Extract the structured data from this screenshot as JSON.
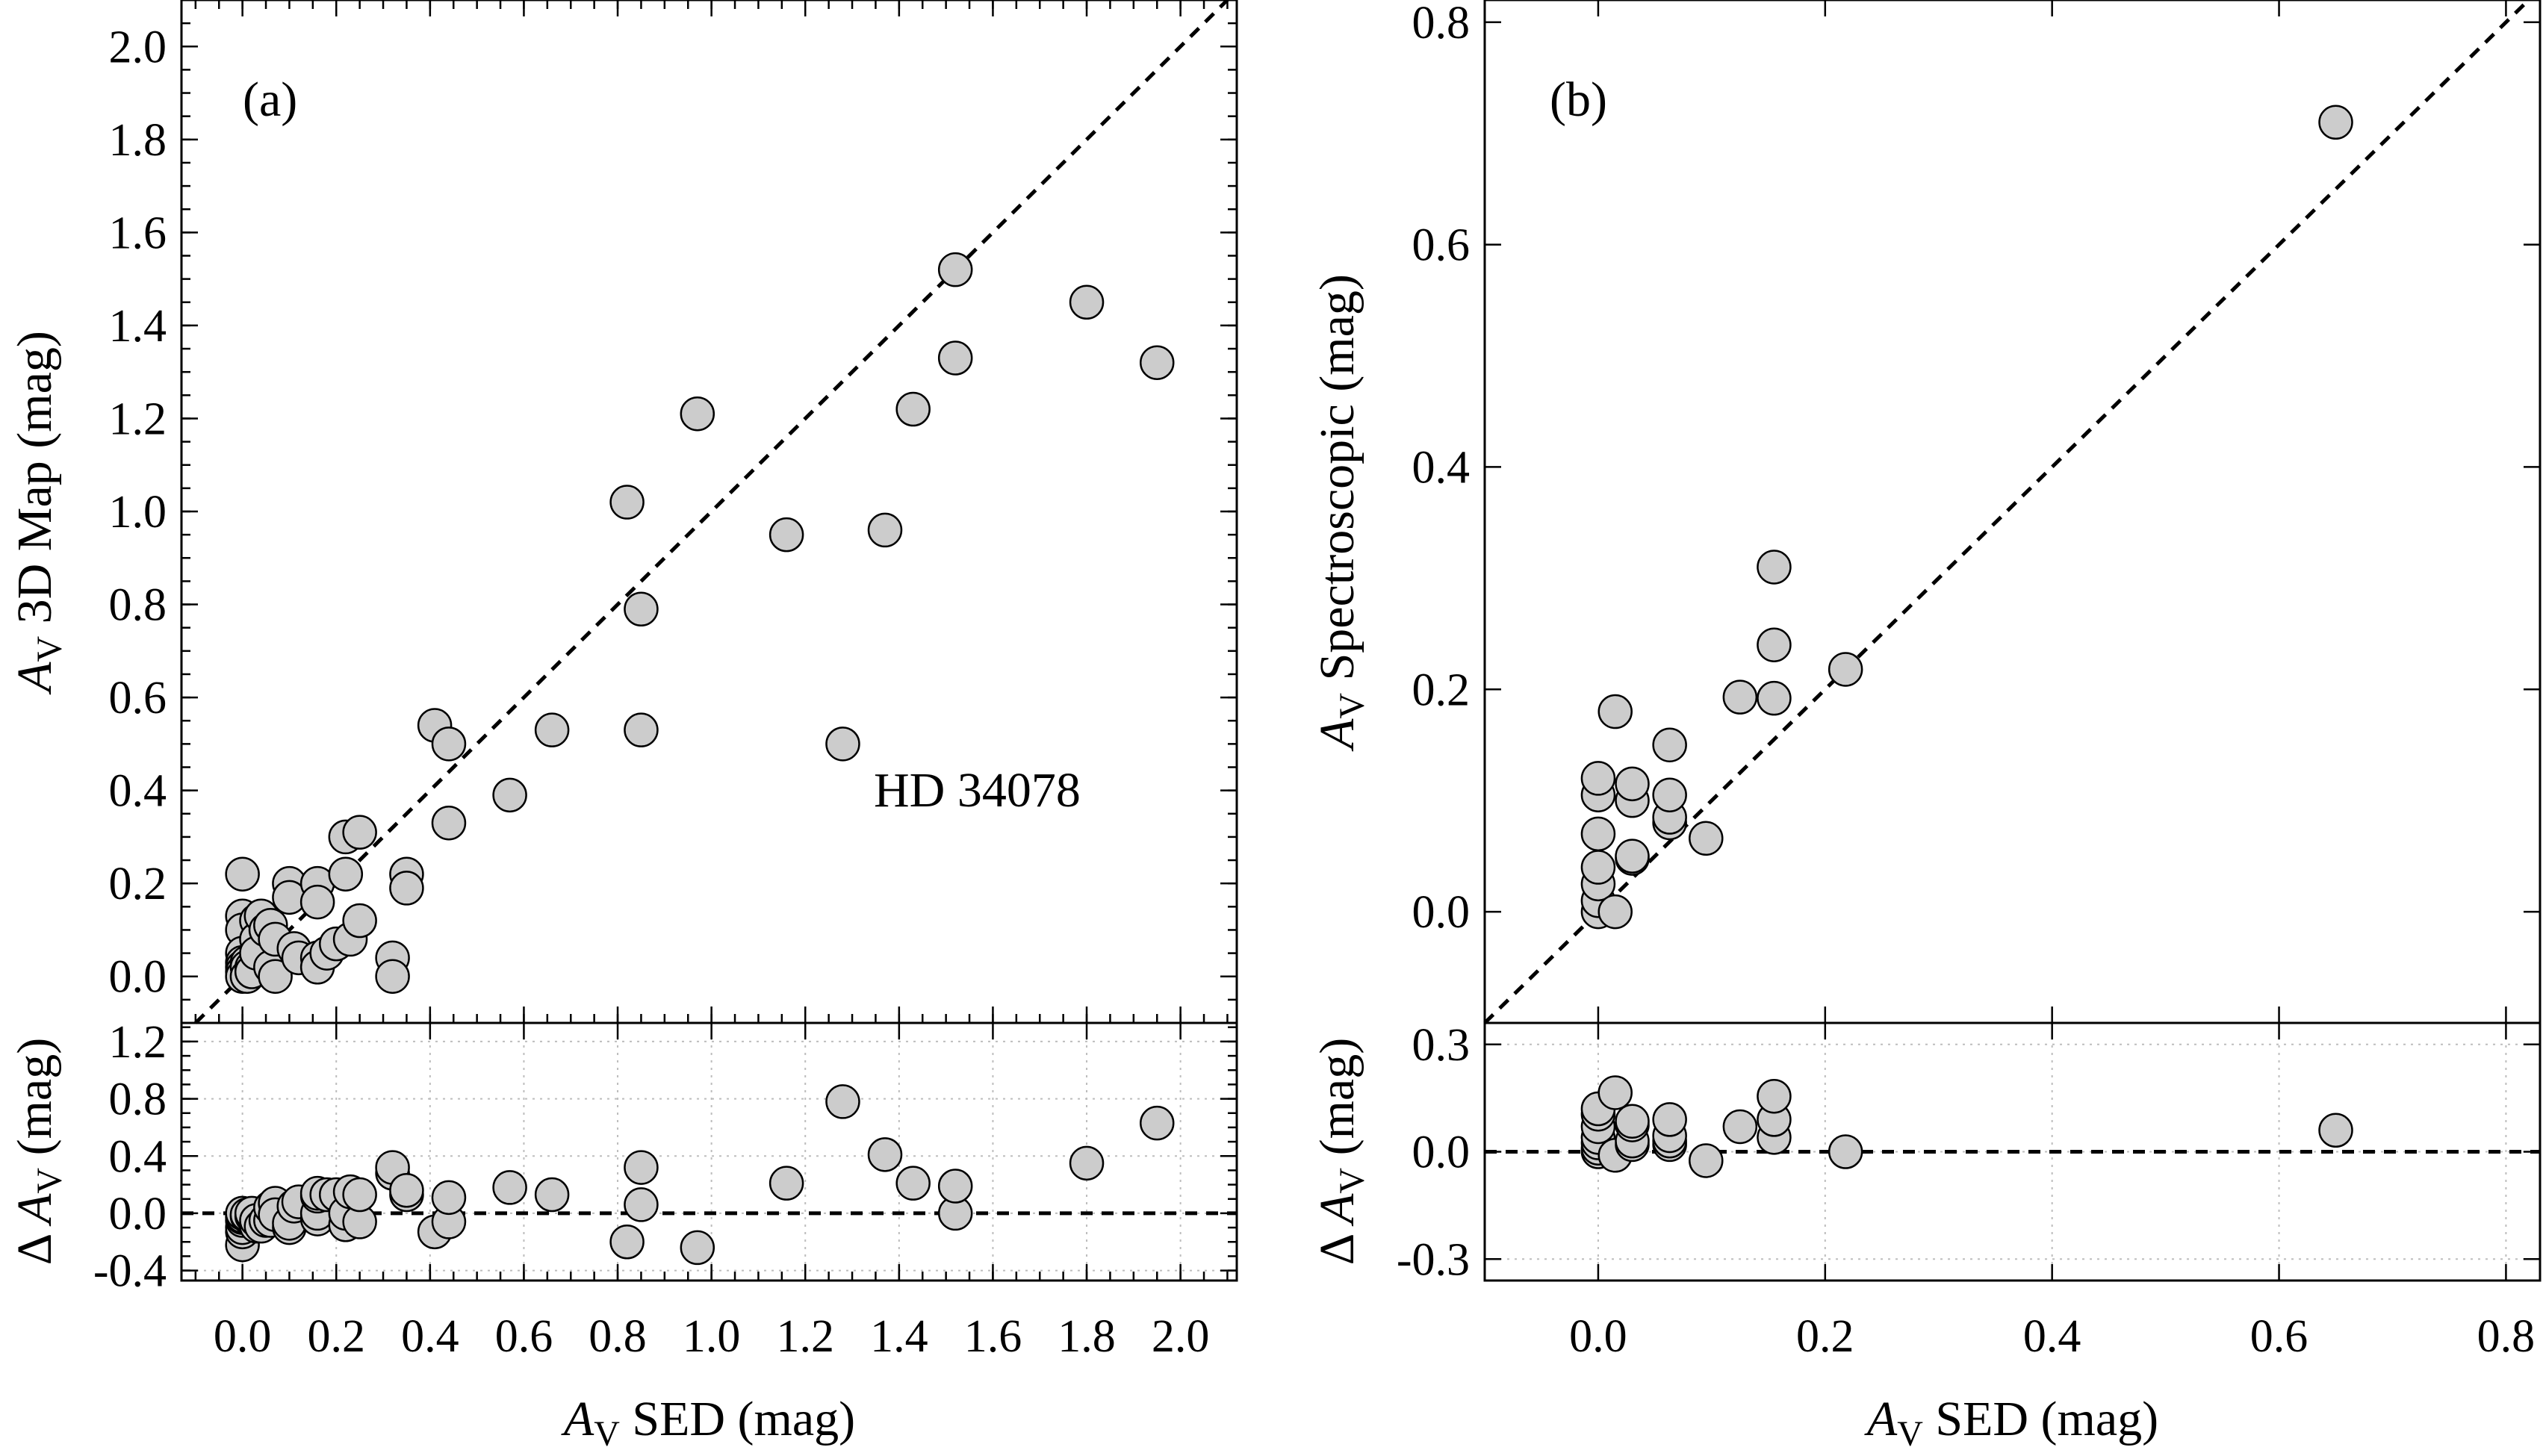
{
  "chart_data": [
    {
      "id": "a",
      "type": "scatter",
      "panel_label": "(a)",
      "annotation": "HD 34078",
      "xlabel": {
        "italic": "A",
        "sub": "V",
        "rest": " SED (mag)"
      },
      "main": {
        "ylabel": {
          "italic": "A",
          "sub": "V",
          "rest": " 3D Map (mag)"
        },
        "xlim": [
          -0.13,
          2.12
        ],
        "ylim": [
          -0.1,
          2.1
        ],
        "yticks": [
          "0.0",
          "0.2",
          "0.4",
          "0.6",
          "0.8",
          "1.0",
          "1.2",
          "1.4",
          "1.6",
          "1.8",
          "2.0"
        ],
        "reference": "y = x",
        "points": [
          [
            0.0,
            0.22
          ],
          [
            0.0,
            0.13
          ],
          [
            0.0,
            0.1
          ],
          [
            0.0,
            0.05
          ],
          [
            0.0,
            0.03
          ],
          [
            0.0,
            0.02
          ],
          [
            0.0,
            0.01
          ],
          [
            0.0,
            0.0
          ],
          [
            0.01,
            0.03
          ],
          [
            0.01,
            0.02
          ],
          [
            0.01,
            0.0
          ],
          [
            0.02,
            0.02
          ],
          [
            0.02,
            0.01
          ],
          [
            0.03,
            0.12
          ],
          [
            0.03,
            0.08
          ],
          [
            0.03,
            0.05
          ],
          [
            0.04,
            0.13
          ],
          [
            0.05,
            0.1
          ],
          [
            0.06,
            0.11
          ],
          [
            0.06,
            0.02
          ],
          [
            0.07,
            0.0
          ],
          [
            0.07,
            0.08
          ],
          [
            0.1,
            0.2
          ],
          [
            0.1,
            0.17
          ],
          [
            0.11,
            0.06
          ],
          [
            0.12,
            0.04
          ],
          [
            0.16,
            0.2
          ],
          [
            0.16,
            0.16
          ],
          [
            0.16,
            0.04
          ],
          [
            0.16,
            0.02
          ],
          [
            0.18,
            0.05
          ],
          [
            0.2,
            0.07
          ],
          [
            0.22,
            0.3
          ],
          [
            0.22,
            0.22
          ],
          [
            0.23,
            0.08
          ],
          [
            0.25,
            0.31
          ],
          [
            0.25,
            0.12
          ],
          [
            0.32,
            0.04
          ],
          [
            0.32,
            0.0
          ],
          [
            0.35,
            0.22
          ],
          [
            0.35,
            0.19
          ],
          [
            0.41,
            0.54
          ],
          [
            0.44,
            0.5
          ],
          [
            0.44,
            0.33
          ],
          [
            0.57,
            0.39
          ],
          [
            0.66,
            0.53
          ],
          [
            0.82,
            1.02
          ],
          [
            0.85,
            0.79
          ],
          [
            0.85,
            0.53
          ],
          [
            0.97,
            1.21
          ],
          [
            1.16,
            0.95
          ],
          [
            1.28,
            0.5
          ],
          [
            1.37,
            0.96
          ],
          [
            1.43,
            1.22
          ],
          [
            1.52,
            1.52
          ],
          [
            1.52,
            1.33
          ],
          [
            1.8,
            1.45
          ],
          [
            1.95,
            1.32
          ]
        ]
      },
      "residual": {
        "ylabel": {
          "prefix": "Δ ",
          "italic": "A",
          "sub": "V",
          "rest": " (mag)"
        },
        "xticks": [
          "0.0",
          "0.2",
          "0.4",
          "0.6",
          "0.8",
          "1.0",
          "1.2",
          "1.4",
          "1.6",
          "1.8",
          "2.0"
        ],
        "yticks": [
          "-0.4",
          "0.0",
          "0.4",
          "0.8",
          "1.2"
        ],
        "xlim": [
          -0.13,
          2.12
        ],
        "ylim": [
          -0.47,
          1.33
        ],
        "reference": "y = 0",
        "points": [
          [
            0.0,
            -0.22
          ],
          [
            0.0,
            -0.13
          ],
          [
            0.0,
            -0.1
          ],
          [
            0.0,
            -0.05
          ],
          [
            0.0,
            -0.03
          ],
          [
            0.0,
            -0.02
          ],
          [
            0.0,
            0.0
          ],
          [
            0.01,
            -0.02
          ],
          [
            0.01,
            -0.01
          ],
          [
            0.02,
            -0.02
          ],
          [
            0.02,
            0.0
          ],
          [
            0.03,
            -0.09
          ],
          [
            0.03,
            -0.05
          ],
          [
            0.04,
            -0.09
          ],
          [
            0.05,
            -0.05
          ],
          [
            0.06,
            -0.05
          ],
          [
            0.06,
            0.04
          ],
          [
            0.07,
            0.07
          ],
          [
            0.07,
            -0.01
          ],
          [
            0.1,
            -0.1
          ],
          [
            0.1,
            -0.07
          ],
          [
            0.11,
            0.05
          ],
          [
            0.12,
            0.08
          ],
          [
            0.16,
            -0.04
          ],
          [
            0.16,
            0.0
          ],
          [
            0.16,
            0.12
          ],
          [
            0.16,
            0.14
          ],
          [
            0.18,
            0.13
          ],
          [
            0.2,
            0.13
          ],
          [
            0.22,
            -0.08
          ],
          [
            0.22,
            0.0
          ],
          [
            0.23,
            0.15
          ],
          [
            0.25,
            -0.06
          ],
          [
            0.25,
            0.13
          ],
          [
            0.32,
            0.28
          ],
          [
            0.32,
            0.32
          ],
          [
            0.35,
            0.13
          ],
          [
            0.35,
            0.16
          ],
          [
            0.41,
            -0.13
          ],
          [
            0.44,
            -0.06
          ],
          [
            0.44,
            0.11
          ],
          [
            0.57,
            0.18
          ],
          [
            0.66,
            0.13
          ],
          [
            0.82,
            -0.2
          ],
          [
            0.85,
            0.06
          ],
          [
            0.85,
            0.32
          ],
          [
            0.97,
            -0.24
          ],
          [
            1.16,
            0.21
          ],
          [
            1.28,
            0.78
          ],
          [
            1.37,
            0.41
          ],
          [
            1.43,
            0.21
          ],
          [
            1.52,
            0.0
          ],
          [
            1.52,
            0.19
          ],
          [
            1.8,
            0.35
          ],
          [
            1.95,
            0.63
          ]
        ]
      }
    },
    {
      "id": "b",
      "type": "scatter",
      "panel_label": "(b)",
      "xlabel": {
        "italic": "A",
        "sub": "V",
        "rest": " SED (mag)"
      },
      "main": {
        "ylabel": {
          "italic": "A",
          "sub": "V",
          "rest": " Spectroscopic (mag)"
        },
        "xlim": [
          -0.1,
          0.83
        ],
        "ylim": [
          -0.1,
          0.82
        ],
        "yticks": [
          "0.0",
          "0.2",
          "0.4",
          "0.6",
          "0.8"
        ],
        "reference": "y = x",
        "points": [
          [
            0.0,
            0.0
          ],
          [
            0.0,
            0.01
          ],
          [
            0.0,
            0.025
          ],
          [
            0.0,
            0.04
          ],
          [
            0.0,
            0.07
          ],
          [
            0.0,
            0.105
          ],
          [
            0.0,
            0.12
          ],
          [
            0.015,
            0.0
          ],
          [
            0.015,
            0.18
          ],
          [
            0.03,
            0.048
          ],
          [
            0.03,
            0.05
          ],
          [
            0.03,
            0.1
          ],
          [
            0.03,
            0.115
          ],
          [
            0.063,
            0.08
          ],
          [
            0.063,
            0.085
          ],
          [
            0.063,
            0.105
          ],
          [
            0.063,
            0.15
          ],
          [
            0.095,
            0.066
          ],
          [
            0.125,
            0.193
          ],
          [
            0.155,
            0.192
          ],
          [
            0.155,
            0.24
          ],
          [
            0.155,
            0.31
          ],
          [
            0.218,
            0.218
          ],
          [
            0.65,
            0.71
          ]
        ]
      },
      "residual": {
        "ylabel": {
          "prefix": "Δ ",
          "italic": "A",
          "sub": "V",
          "rest": " (mag)"
        },
        "xticks": [
          "0.0",
          "0.2",
          "0.4",
          "0.6",
          "0.8"
        ],
        "yticks": [
          "-0.3",
          "0.0",
          "0.3"
        ],
        "xlim": [
          -0.1,
          0.83
        ],
        "ylim": [
          -0.36,
          0.36
        ],
        "reference": "y = 0",
        "points": [
          [
            0.0,
            0.0
          ],
          [
            0.0,
            0.01
          ],
          [
            0.0,
            0.025
          ],
          [
            0.0,
            0.04
          ],
          [
            0.0,
            0.07
          ],
          [
            0.0,
            0.105
          ],
          [
            0.0,
            0.12
          ],
          [
            0.015,
            -0.01
          ],
          [
            0.015,
            0.165
          ],
          [
            0.03,
            0.02
          ],
          [
            0.03,
            0.03
          ],
          [
            0.03,
            0.075
          ],
          [
            0.03,
            0.085
          ],
          [
            0.063,
            0.02
          ],
          [
            0.063,
            0.03
          ],
          [
            0.063,
            0.045
          ],
          [
            0.063,
            0.09
          ],
          [
            0.095,
            -0.025
          ],
          [
            0.125,
            0.07
          ],
          [
            0.155,
            0.04
          ],
          [
            0.155,
            0.09
          ],
          [
            0.155,
            0.155
          ],
          [
            0.218,
            0.0
          ],
          [
            0.65,
            0.06
          ]
        ]
      }
    }
  ]
}
